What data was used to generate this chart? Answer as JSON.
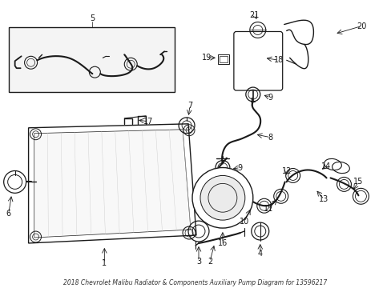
{
  "title": "2018 Chevrolet Malibu Radiator & Components Auxiliary Pump Diagram for 13596217",
  "bg": "#ffffff",
  "lc": "#1a1a1a",
  "fig_w": 4.89,
  "fig_h": 3.6,
  "dpi": 100
}
